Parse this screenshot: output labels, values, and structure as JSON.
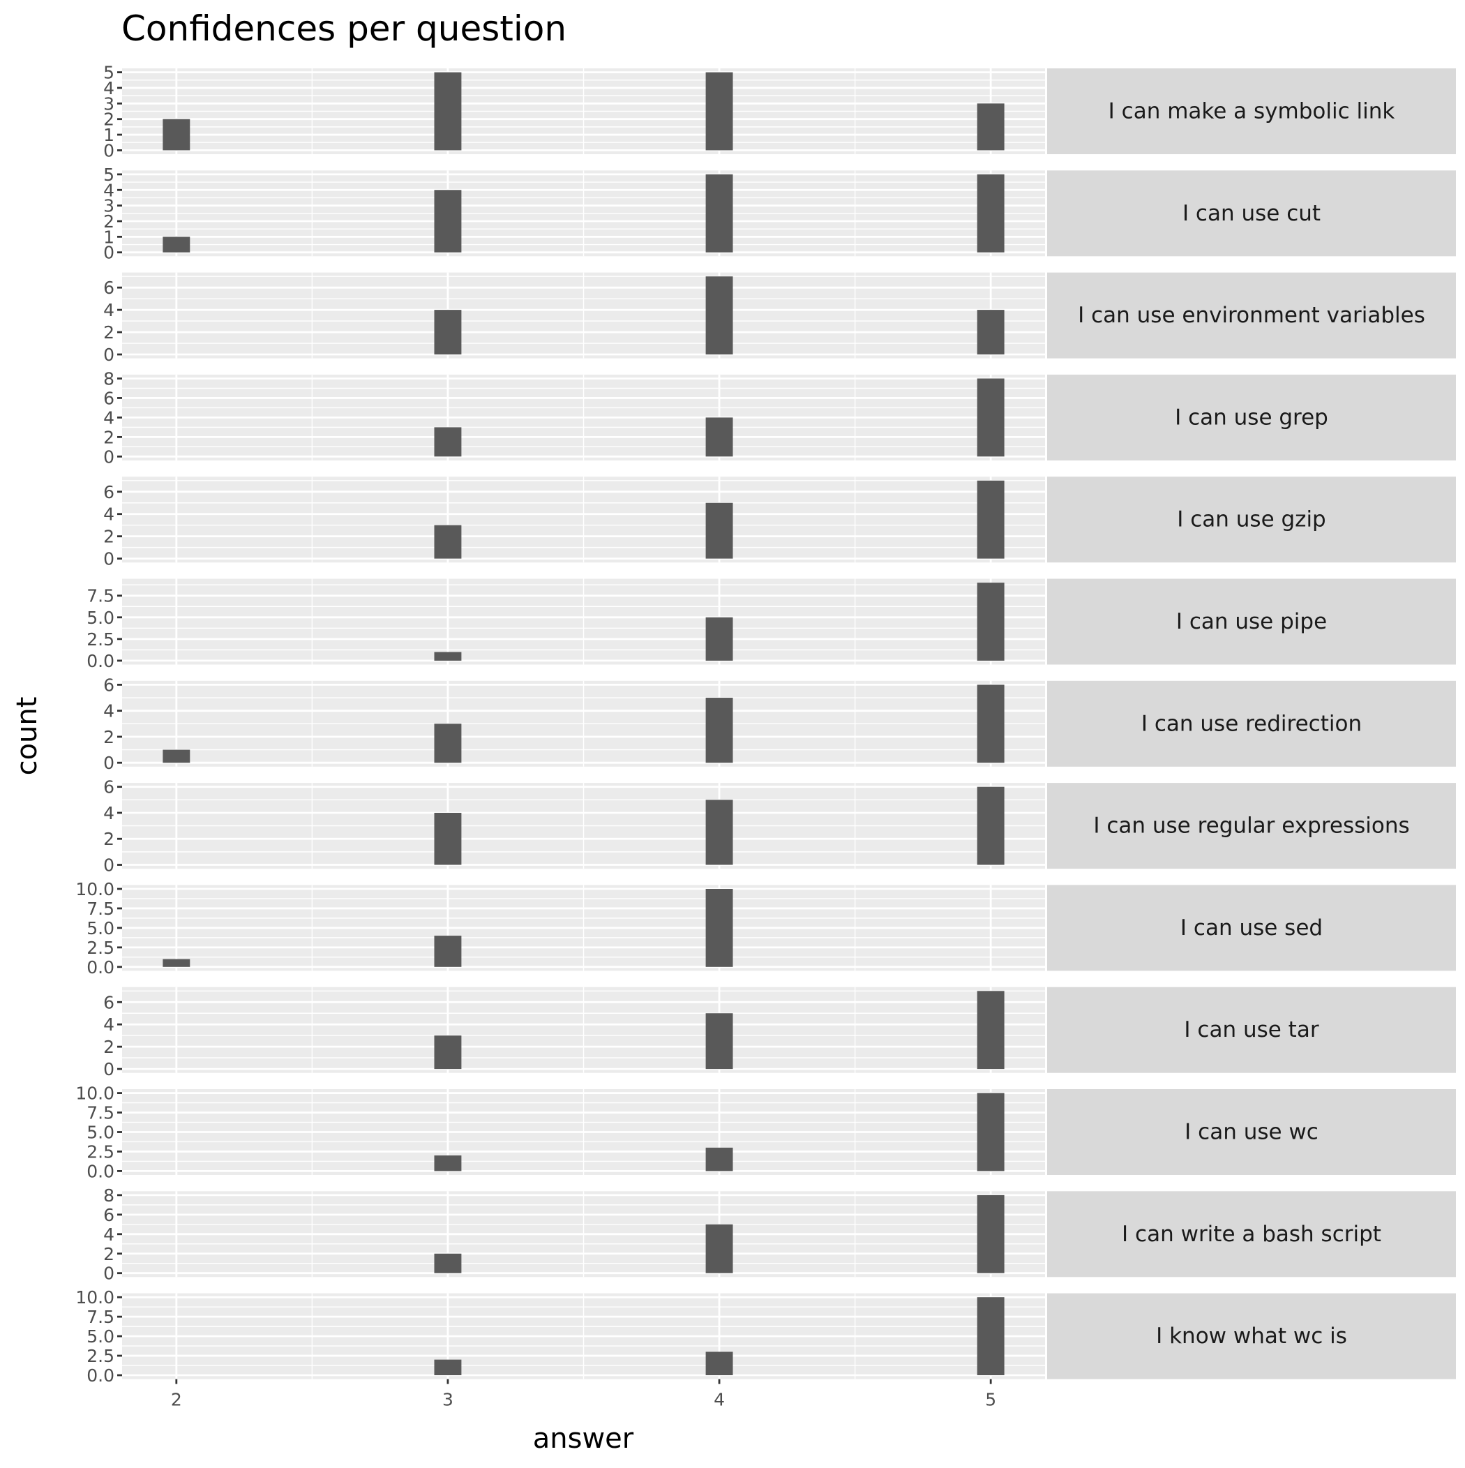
{
  "chart_data": {
    "type": "bar",
    "title": "Confidences per question",
    "xlabel": "answer",
    "ylabel": "count",
    "x_ticks": [
      2,
      3,
      4,
      5
    ],
    "xlim": [
      1.8,
      5.2
    ],
    "grid": true,
    "facet_layout": "rows, free y scales, strip labels on right",
    "colors": {
      "bar": "#595959",
      "panel": "#ebebeb",
      "strip": "#d9d9d9",
      "grid": "#ffffff"
    },
    "panels": [
      {
        "label": "I can make a symbolic link",
        "y_ticks": [
          "0",
          "1",
          "2",
          "3",
          "4",
          "5"
        ],
        "y_breaks": [
          0,
          1,
          2,
          3,
          4,
          5
        ],
        "x": [
          2,
          3,
          4,
          5
        ],
        "values": [
          2,
          5,
          5,
          3
        ]
      },
      {
        "label": "I can use cut",
        "y_ticks": [
          "0",
          "1",
          "2",
          "3",
          "4",
          "5"
        ],
        "y_breaks": [
          0,
          1,
          2,
          3,
          4,
          5
        ],
        "x": [
          2,
          3,
          4,
          5
        ],
        "values": [
          1,
          4,
          5,
          5
        ]
      },
      {
        "label": "I can use environment variables",
        "y_ticks": [
          "0",
          "2",
          "4",
          "6"
        ],
        "y_breaks": [
          0,
          2,
          4,
          6
        ],
        "x": [
          3,
          4,
          5
        ],
        "values": [
          4,
          7,
          4
        ]
      },
      {
        "label": "I can use grep",
        "y_ticks": [
          "0",
          "2",
          "4",
          "6",
          "8"
        ],
        "y_breaks": [
          0,
          2,
          4,
          6,
          8
        ],
        "x": [
          3,
          4,
          5
        ],
        "values": [
          3,
          4,
          8
        ]
      },
      {
        "label": "I can use gzip",
        "y_ticks": [
          "0",
          "2",
          "4",
          "6"
        ],
        "y_breaks": [
          0,
          2,
          4,
          6
        ],
        "x": [
          3,
          4,
          5
        ],
        "values": [
          3,
          5,
          7
        ]
      },
      {
        "label": "I can use pipe",
        "y_ticks": [
          "0.0",
          "2.5",
          "5.0",
          "7.5"
        ],
        "y_breaks": [
          0,
          2.5,
          5,
          7.5
        ],
        "x": [
          3,
          4,
          5
        ],
        "values": [
          1,
          5,
          9
        ]
      },
      {
        "label": "I can use redirection",
        "y_ticks": [
          "0",
          "2",
          "4",
          "6"
        ],
        "y_breaks": [
          0,
          2,
          4,
          6
        ],
        "x": [
          2,
          3,
          4,
          5
        ],
        "values": [
          1,
          3,
          5,
          6
        ]
      },
      {
        "label": "I can use regular expressions",
        "y_ticks": [
          "0",
          "2",
          "4",
          "6"
        ],
        "y_breaks": [
          0,
          2,
          4,
          6
        ],
        "x": [
          3,
          4,
          5
        ],
        "values": [
          4,
          5,
          6
        ]
      },
      {
        "label": "I can use sed",
        "y_ticks": [
          "0.0",
          "2.5",
          "5.0",
          "7.5",
          "10.0"
        ],
        "y_breaks": [
          0,
          2.5,
          5,
          7.5,
          10
        ],
        "x": [
          2,
          3,
          4
        ],
        "values": [
          1,
          4,
          10
        ]
      },
      {
        "label": "I can use tar",
        "y_ticks": [
          "0",
          "2",
          "4",
          "6"
        ],
        "y_breaks": [
          0,
          2,
          4,
          6
        ],
        "x": [
          3,
          4,
          5
        ],
        "values": [
          3,
          5,
          7
        ]
      },
      {
        "label": "I can use wc",
        "y_ticks": [
          "0.0",
          "2.5",
          "5.0",
          "7.5",
          "10.0"
        ],
        "y_breaks": [
          0,
          2.5,
          5,
          7.5,
          10
        ],
        "x": [
          3,
          4,
          5
        ],
        "values": [
          2,
          3,
          10
        ]
      },
      {
        "label": "I can write a bash script",
        "y_ticks": [
          "0",
          "2",
          "4",
          "6",
          "8"
        ],
        "y_breaks": [
          0,
          2,
          4,
          6,
          8
        ],
        "x": [
          3,
          4,
          5
        ],
        "values": [
          2,
          5,
          8
        ]
      },
      {
        "label": "I know what wc is",
        "y_ticks": [
          "0.0",
          "2.5",
          "5.0",
          "7.5",
          "10.0"
        ],
        "y_breaks": [
          0,
          2.5,
          5,
          7.5,
          10
        ],
        "x": [
          3,
          4,
          5
        ],
        "values": [
          2,
          3,
          10
        ]
      }
    ]
  }
}
